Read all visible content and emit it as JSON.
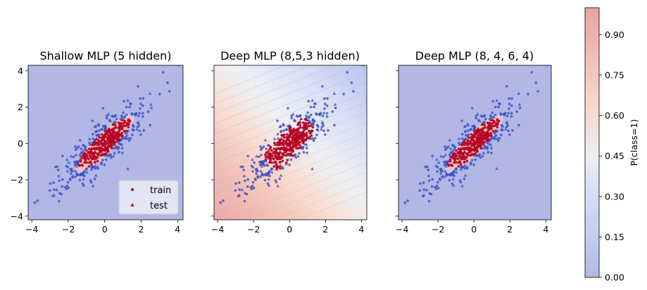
{
  "chart_data": [
    {
      "type": "scatter",
      "subtype": "decision-boundary",
      "title": "Shallow MLP (5 hidden)",
      "xlim": [
        -4.2,
        4.3
      ],
      "ylim": [
        -4.2,
        4.3
      ],
      "xticks": [
        -4,
        -2,
        0,
        2,
        4
      ],
      "yticks": [
        -4,
        -2,
        0,
        2,
        4
      ],
      "xtick_labels": [
        "−4",
        "−2",
        "0",
        "2",
        "4"
      ],
      "ytick_labels": [
        "−4",
        "−2",
        "0",
        "2",
        "4"
      ],
      "region": {
        "kind": "ellipse",
        "center": [
          0,
          0
        ],
        "semi_major": 2.0,
        "semi_minor": 0.5,
        "angle_deg": 45
      },
      "legend": {
        "position": "lower-right",
        "entries": [
          "train",
          "test"
        ]
      }
    },
    {
      "type": "scatter",
      "subtype": "decision-boundary",
      "title": "Deep MLP (8,5,3 hidden)",
      "xlim": [
        -4.2,
        4.3
      ],
      "ylim": [
        -4.2,
        4.3
      ],
      "xticks": [
        -4,
        -2,
        0,
        2,
        4
      ],
      "xtick_labels": [
        "−4",
        "−2",
        "0",
        "2",
        "4"
      ],
      "region": {
        "kind": "gradient",
        "low_corner": "top-right",
        "high_corner": "bottom-left"
      }
    },
    {
      "type": "scatter",
      "subtype": "decision-boundary",
      "title": "Deep MLP (8, 4, 6, 4)",
      "xlim": [
        -4.2,
        4.3
      ],
      "ylim": [
        -4.2,
        4.3
      ],
      "xticks": [
        -4,
        -2,
        0,
        2,
        4
      ],
      "xtick_labels": [
        "−4",
        "−2",
        "0",
        "2",
        "4"
      ],
      "region": {
        "kind": "ellipse",
        "center": [
          0,
          0
        ],
        "semi_major": 2.0,
        "semi_minor": 0.5,
        "angle_deg": 45
      }
    }
  ],
  "colorbar": {
    "label": "P(class=1)",
    "range": [
      0,
      1
    ],
    "ticks": [
      0.0,
      0.15,
      0.3,
      0.45,
      0.6,
      0.75,
      0.9
    ],
    "tick_labels": [
      "0.00",
      "0.15",
      "0.30",
      "0.45",
      "0.60",
      "0.75",
      "0.90"
    ]
  },
  "series": {
    "names": [
      "train",
      "test"
    ],
    "colors": {
      "class0": "#3b4cc0",
      "class1": "#b40426"
    },
    "markers": {
      "train": "circle",
      "test": "triangle"
    }
  },
  "colors": {
    "low": "#b1b8e6",
    "mid": "#eef0f3",
    "high": "#e9abb0",
    "class1_region": "#f3c7c0"
  }
}
